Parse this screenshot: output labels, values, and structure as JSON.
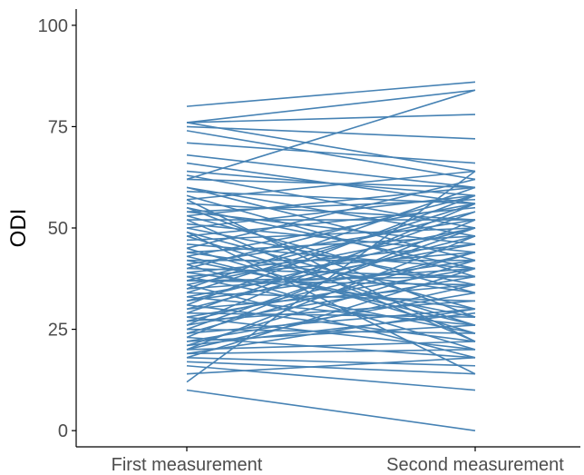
{
  "chart_data": {
    "type": "line",
    "title": "",
    "xlabel": "",
    "ylabel": "ODI",
    "categories": [
      "First measurement",
      "Second measurement"
    ],
    "ylim": [
      -4,
      104
    ],
    "yticks": [
      0,
      25,
      50,
      75,
      100
    ],
    "grid": false,
    "line_color": "#4682B4",
    "pairs": [
      [
        80,
        86
      ],
      [
        76,
        84
      ],
      [
        76,
        78
      ],
      [
        76,
        64
      ],
      [
        75,
        72
      ],
      [
        74,
        62
      ],
      [
        71,
        66
      ],
      [
        68,
        60
      ],
      [
        66,
        56
      ],
      [
        64,
        58
      ],
      [
        63,
        50
      ],
      [
        62,
        84
      ],
      [
        62,
        60
      ],
      [
        60,
        48
      ],
      [
        60,
        42
      ],
      [
        59,
        56
      ],
      [
        58,
        38
      ],
      [
        57,
        64
      ],
      [
        56,
        52
      ],
      [
        55,
        40
      ],
      [
        55,
        28
      ],
      [
        54,
        57
      ],
      [
        54,
        46
      ],
      [
        53,
        60
      ],
      [
        53,
        34
      ],
      [
        52,
        22
      ],
      [
        52,
        52
      ],
      [
        51,
        44
      ],
      [
        50,
        58
      ],
      [
        50,
        36
      ],
      [
        49,
        30
      ],
      [
        48,
        55
      ],
      [
        48,
        26
      ],
      [
        47,
        50
      ],
      [
        46,
        40
      ],
      [
        45,
        62
      ],
      [
        45,
        24
      ],
      [
        44,
        48
      ],
      [
        44,
        34
      ],
      [
        43,
        56
      ],
      [
        42,
        28
      ],
      [
        42,
        42
      ],
      [
        41,
        52
      ],
      [
        41,
        20
      ],
      [
        40,
        38
      ],
      [
        40,
        58
      ],
      [
        39,
        46
      ],
      [
        39,
        30
      ],
      [
        38,
        44
      ],
      [
        38,
        24
      ],
      [
        37,
        54
      ],
      [
        37,
        36
      ],
      [
        36,
        50
      ],
      [
        36,
        18
      ],
      [
        35,
        40
      ],
      [
        35,
        60
      ],
      [
        34,
        32
      ],
      [
        34,
        56
      ],
      [
        33,
        46
      ],
      [
        33,
        26
      ],
      [
        32,
        42
      ],
      [
        32,
        50
      ],
      [
        31,
        22
      ],
      [
        31,
        58
      ],
      [
        30,
        36
      ],
      [
        30,
        48
      ],
      [
        29,
        28
      ],
      [
        29,
        54
      ],
      [
        28,
        40
      ],
      [
        28,
        20
      ],
      [
        27,
        44
      ],
      [
        27,
        32
      ],
      [
        26,
        56
      ],
      [
        26,
        38
      ],
      [
        25,
        24
      ],
      [
        25,
        50
      ],
      [
        24,
        30
      ],
      [
        24,
        44
      ],
      [
        23,
        18
      ],
      [
        23,
        52
      ],
      [
        22,
        34
      ],
      [
        22,
        26
      ],
      [
        21,
        42
      ],
      [
        21,
        29
      ],
      [
        20,
        36
      ],
      [
        20,
        22
      ],
      [
        20,
        48
      ],
      [
        19,
        30
      ],
      [
        19,
        20
      ],
      [
        18,
        16
      ],
      [
        18,
        40
      ],
      [
        17,
        14
      ],
      [
        14,
        18
      ],
      [
        12,
        64
      ],
      [
        10,
        0
      ],
      [
        16,
        10
      ],
      [
        57,
        22
      ],
      [
        49,
        14
      ],
      [
        43,
        26
      ],
      [
        37,
        38
      ]
    ]
  }
}
